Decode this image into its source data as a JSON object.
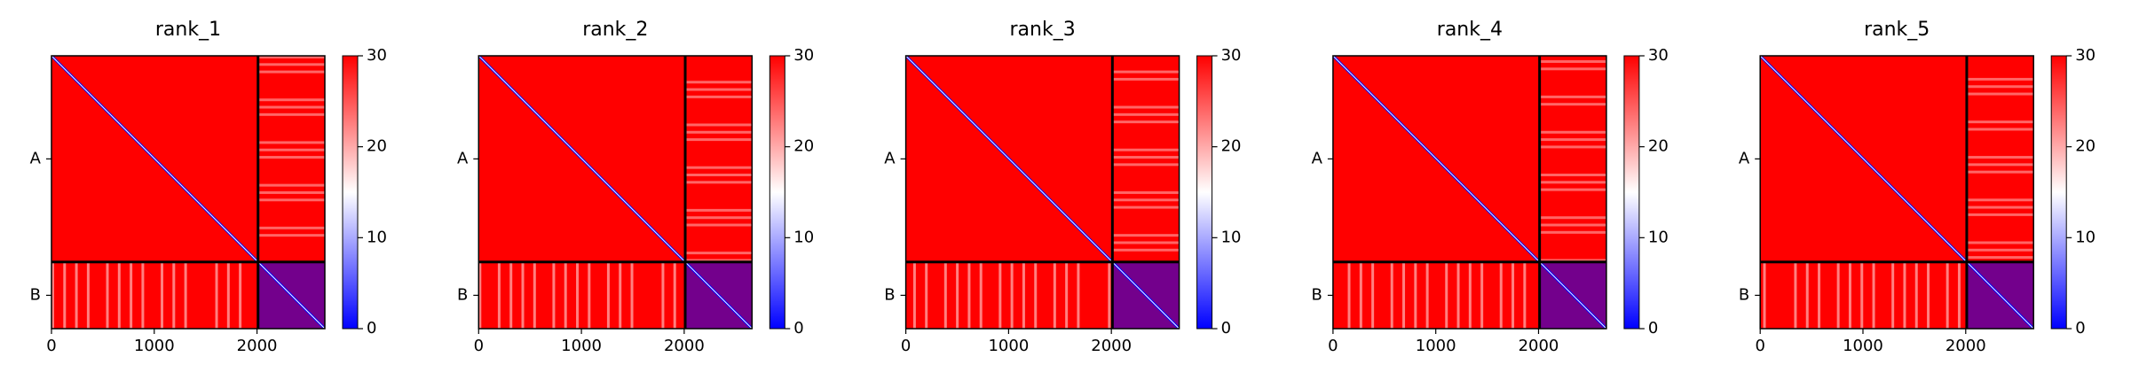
{
  "chart_data": [
    {
      "type": "heatmap",
      "title": "rank_1",
      "xlim": [
        0,
        2660
      ],
      "xticks": [
        0,
        1000,
        2000
      ],
      "ylim": [
        2660,
        0
      ],
      "yticks": [
        {
          "value": 1005,
          "label": "A"
        },
        {
          "value": 2335,
          "label": "B"
        }
      ],
      "chain_breaks": [
        2010
      ],
      "clim": [
        0,
        30
      ],
      "colorbar_ticks": [
        0,
        10,
        20,
        30
      ],
      "colormap": [
        "#0000ff",
        "#ffffff",
        "#ff0000"
      ]
    },
    {
      "type": "heatmap",
      "title": "rank_2",
      "xlim": [
        0,
        2660
      ],
      "xticks": [
        0,
        1000,
        2000
      ],
      "ylim": [
        2660,
        0
      ],
      "yticks": [
        {
          "value": 1005,
          "label": "A"
        },
        {
          "value": 2335,
          "label": "B"
        }
      ],
      "chain_breaks": [
        2010
      ],
      "clim": [
        0,
        30
      ],
      "colorbar_ticks": [
        0,
        10,
        20,
        30
      ],
      "colormap": [
        "#0000ff",
        "#ffffff",
        "#ff0000"
      ]
    },
    {
      "type": "heatmap",
      "title": "rank_3",
      "xlim": [
        0,
        2660
      ],
      "xticks": [
        0,
        1000,
        2000
      ],
      "ylim": [
        2660,
        0
      ],
      "yticks": [
        {
          "value": 1005,
          "label": "A"
        },
        {
          "value": 2335,
          "label": "B"
        }
      ],
      "chain_breaks": [
        2010
      ],
      "clim": [
        0,
        30
      ],
      "colorbar_ticks": [
        0,
        10,
        20,
        30
      ],
      "colormap": [
        "#0000ff",
        "#ffffff",
        "#ff0000"
      ]
    },
    {
      "type": "heatmap",
      "title": "rank_4",
      "xlim": [
        0,
        2660
      ],
      "xticks": [
        0,
        1000,
        2000
      ],
      "ylim": [
        2660,
        0
      ],
      "yticks": [
        {
          "value": 1005,
          "label": "A"
        },
        {
          "value": 2335,
          "label": "B"
        }
      ],
      "chain_breaks": [
        2010
      ],
      "clim": [
        0,
        30
      ],
      "colorbar_ticks": [
        0,
        10,
        20,
        30
      ],
      "colormap": [
        "#0000ff",
        "#ffffff",
        "#ff0000"
      ]
    },
    {
      "type": "heatmap",
      "title": "rank_5",
      "xlim": [
        0,
        2660
      ],
      "xticks": [
        0,
        1000,
        2000
      ],
      "ylim": [
        2660,
        0
      ],
      "yticks": [
        {
          "value": 1005,
          "label": "A"
        },
        {
          "value": 2335,
          "label": "B"
        }
      ],
      "chain_breaks": [
        2010
      ],
      "clim": [
        0,
        30
      ],
      "colorbar_ticks": [
        0,
        10,
        20,
        30
      ],
      "colormap": [
        "#0000ff",
        "#ffffff",
        "#ff0000"
      ]
    }
  ]
}
